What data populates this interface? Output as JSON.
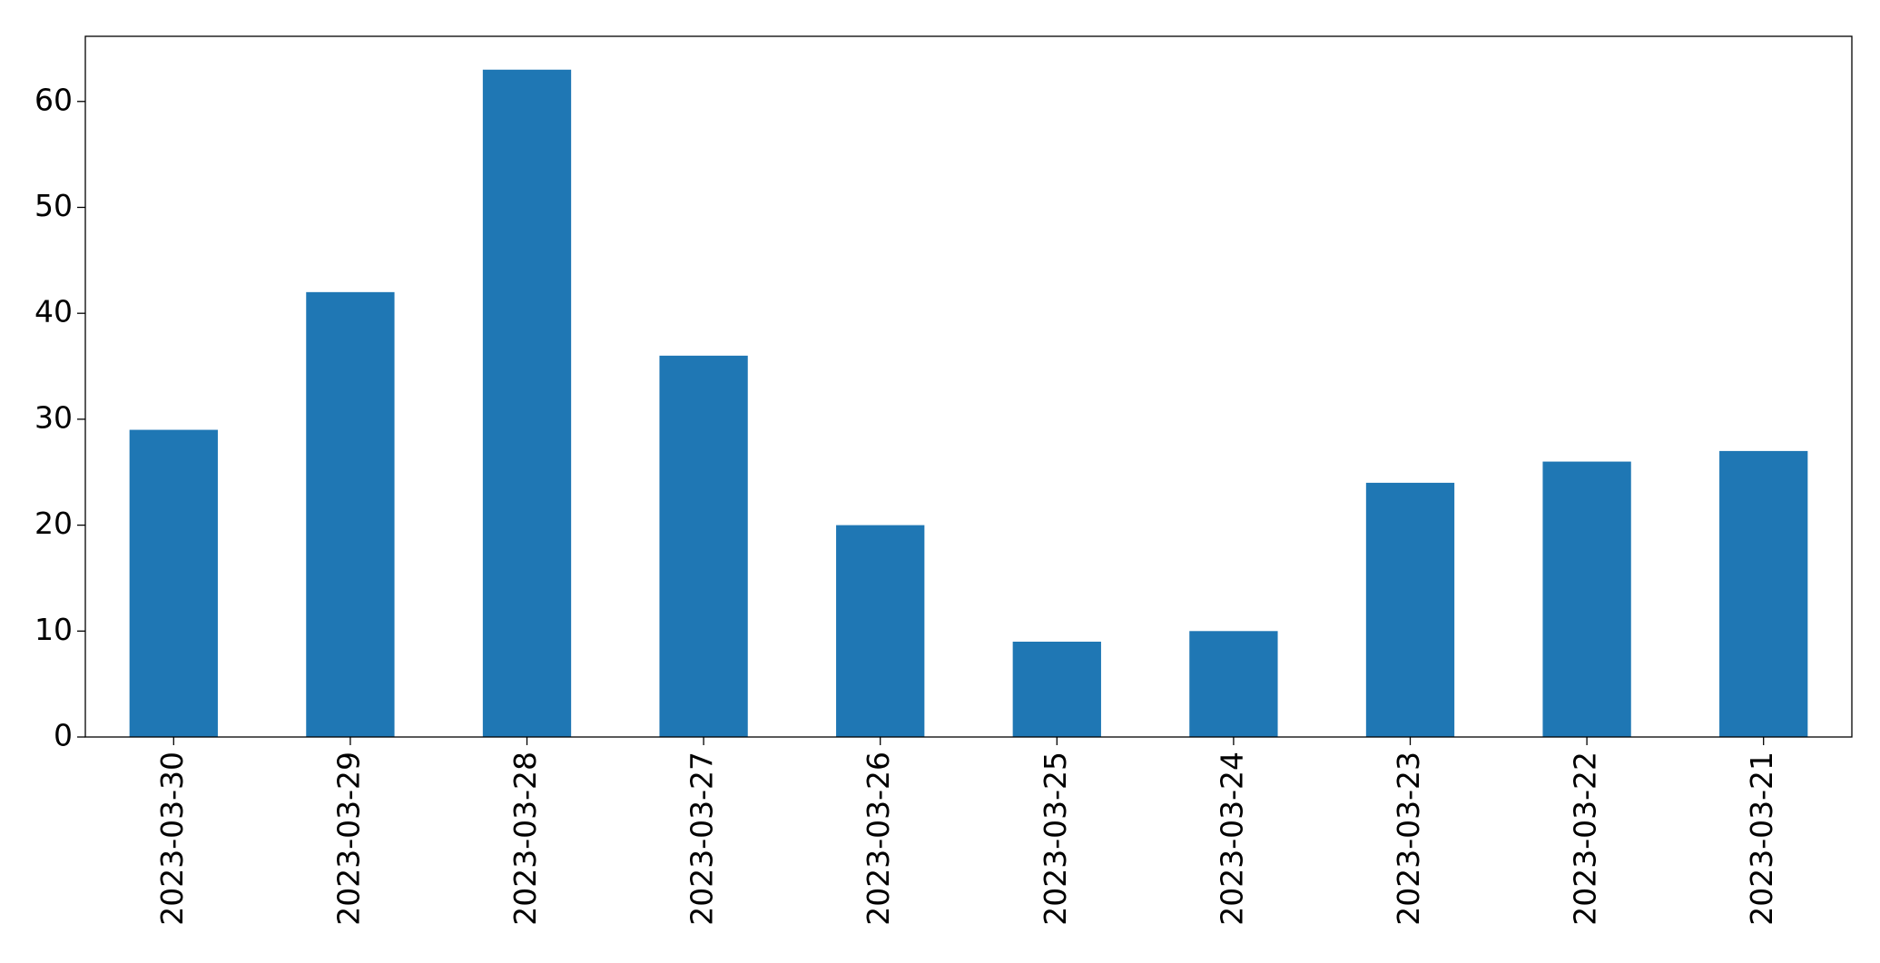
{
  "chart_data": {
    "type": "bar",
    "categories": [
      "2023-03-30",
      "2023-03-29",
      "2023-03-28",
      "2023-03-27",
      "2023-03-26",
      "2023-03-25",
      "2023-03-24",
      "2023-03-23",
      "2023-03-22",
      "2023-03-21"
    ],
    "values": [
      29,
      42,
      63,
      36,
      20,
      9,
      10,
      24,
      26,
      27
    ],
    "color": "#1f77b4",
    "ylim": [
      0,
      66.15
    ],
    "yticks": [
      0,
      10,
      20,
      30,
      40,
      50,
      60
    ],
    "grid": false
  }
}
